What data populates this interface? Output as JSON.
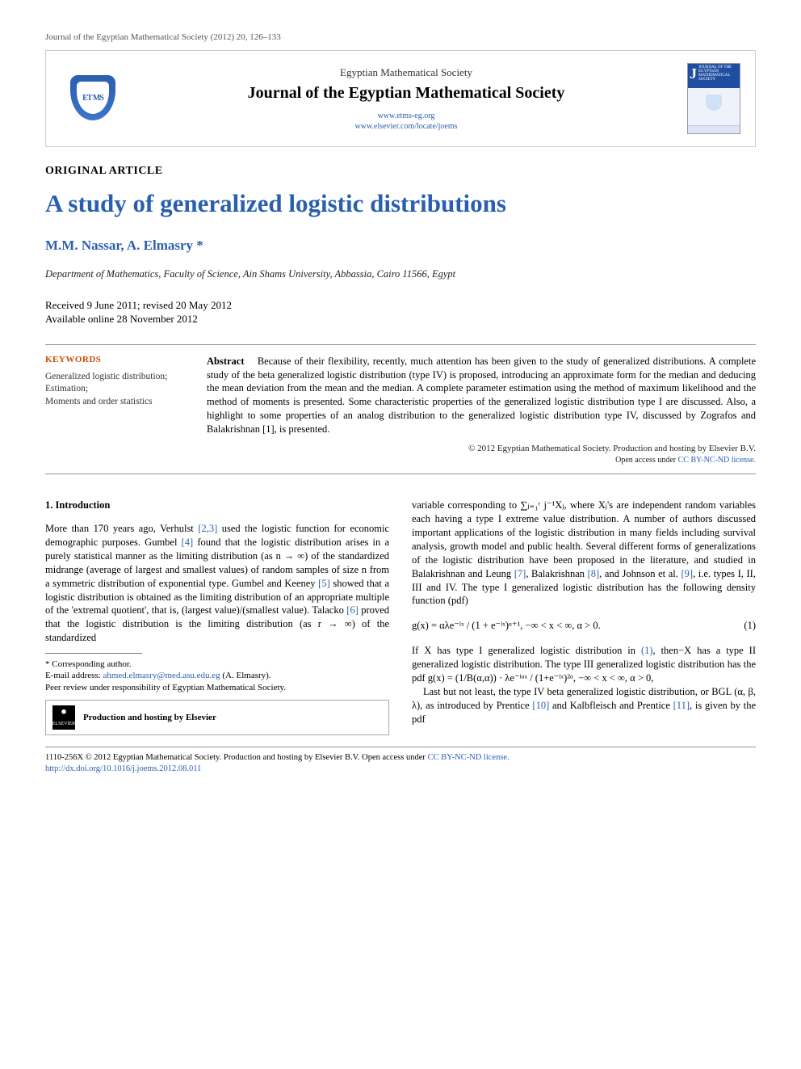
{
  "journal_ref": "Journal of the Egyptian Mathematical Society (2012) 20, 126–133",
  "header": {
    "logo_letters": "ET MS",
    "logo_sub": "",
    "society": "Egyptian Mathematical Society",
    "journal": "Journal of the Egyptian Mathematical Society",
    "link1": "www.etms-eg.org",
    "link2": "www.elsevier.com/locate/joems",
    "cover_j": "J",
    "cover_text": "JOURNAL OF THE EGYPTIAN MATHEMATICAL SOCIETY"
  },
  "article_type": "ORIGINAL ARTICLE",
  "title": "A study of generalized logistic distributions",
  "authors": "M.M. Nassar, A. Elmasry *",
  "affiliation": "Department of Mathematics, Faculty of Science, Ain Shams University, Abbassia, Cairo 11566, Egypt",
  "dates_line1": "Received 9 June 2011; revised 20 May 2012",
  "dates_line2": "Available online 28 November 2012",
  "keywords": {
    "heading": "KEYWORDS",
    "items": "Generalized logistic distribution;\nEstimation;\nMoments and order statistics"
  },
  "abstract": {
    "label": "Abstract",
    "text": "Because of their flexibility, recently, much attention has been given to the study of generalized distributions. A complete study of the beta generalized logistic distribution (type IV) is proposed, introducing an approximate form for the median and deducing the mean deviation from the mean and the median. A complete parameter estimation using the method of maximum likelihood and the method of moments is presented. Some characteristic properties of the generalized logistic distribution type I are discussed. Also, a highlight to some properties of an analog distribution to the generalized logistic distribution type IV, discussed by Zografos and Balakrishnan [1], is presented.",
    "ref_in_text": "[1]",
    "copyright": "© 2012 Egyptian Mathematical Society. Production and hosting by Elsevier B.V.",
    "license_prefix": "Open access under ",
    "license_link": "CC BY-NC-ND license."
  },
  "intro": {
    "heading": "1. Introduction",
    "p1a": "More than 170 years ago, Verhulst ",
    "r23": "[2,3]",
    "p1b": " used the logistic function for economic demographic purposes. Gumbel ",
    "r4": "[4]",
    "p1c": " found that the logistic distribution arises in a purely statistical manner as the limiting distribution (as n → ∞) of the standardized midrange (average of largest and smallest values) of random samples of size n from a symmetric distribution of exponential type. Gumbel and Keeney ",
    "r5": "[5]",
    "p1d": " showed that a logistic distribution is obtained as the limiting distribution of an appropriate multiple of the 'extremal quotient', that is, (largest value)/(smallest value). Talacko ",
    "r6": "[6]",
    "p1e": " proved that the logistic distribution is the limiting distribution (as r → ∞) of the standardized",
    "p2a": "variable corresponding to ∑ⱼ₌₁ʳ j⁻¹Xⱼ, where Xⱼ's are independent random variables each having a type I extreme value distribution. A number of authors discussed important applications of the logistic distribution in many fields including survival analysis, growth model and public health. Several different forms of generalizations of the logistic distribution have been proposed in the literature, and studied in Balakrishnan and Leung ",
    "r7": "[7]",
    "p2b": ", Balakrishnan ",
    "r8": "[8]",
    "p2c": ", and Johnson et al. ",
    "r9": "[9]",
    "p2d": ", i.e. types I, II, III and IV. The type I generalized logistic distribution has the following density function (pdf)",
    "eq1": "g(x) = αλe⁻ˡˣ / (1 + e⁻ˡˣ)ᵅ⁺¹,   −∞ < x < ∞,  α > 0.",
    "eq1_num": "(1)",
    "p3a": "If X has type I generalized logistic distribution in ",
    "r_eq1": "(1)",
    "p3b": ", then−X has a type II generalized logistic distribution. The type III generalized logistic distribution has the pdf g(x) = (1/B(α,α)) · λe⁻ˡᵅˣ / (1+e⁻ˡˣ)²ᵅ, −∞ < x < ∞, α > 0,",
    "p4a": "Last but not least, the type IV beta generalized logistic distribution, or BGL (α, β, λ), as introduced by Prentice ",
    "r10": "[10]",
    "p4b": " and Kalbfleisch and Prentice ",
    "r11": "[11]",
    "p4c": ", is given by the pdf"
  },
  "footnote": {
    "corr": "* Corresponding author.",
    "email_label": "E-mail address: ",
    "email": "ahmed.elmasry@med.asu.edu.eg",
    "email_who": " (A. Elmasry).",
    "peer": "Peer review under responsibility of Egyptian Mathematical Society.",
    "elsevier": "ELSEVIER",
    "hosting": "Production and hosting by Elsevier"
  },
  "footer": {
    "line1a": "1110-256X © 2012 Egyptian Mathematical Society. Production and hosting by Elsevier B.V. ",
    "line1b": "Open access under ",
    "line1c": "CC BY-NC-ND license.",
    "doi": "http://dx.doi.org/10.1016/j.joems.2012.08.011"
  },
  "colors": {
    "link": "#2a5fb0",
    "kw_head": "#d14a00",
    "text": "#000000",
    "rule": "#999999"
  }
}
